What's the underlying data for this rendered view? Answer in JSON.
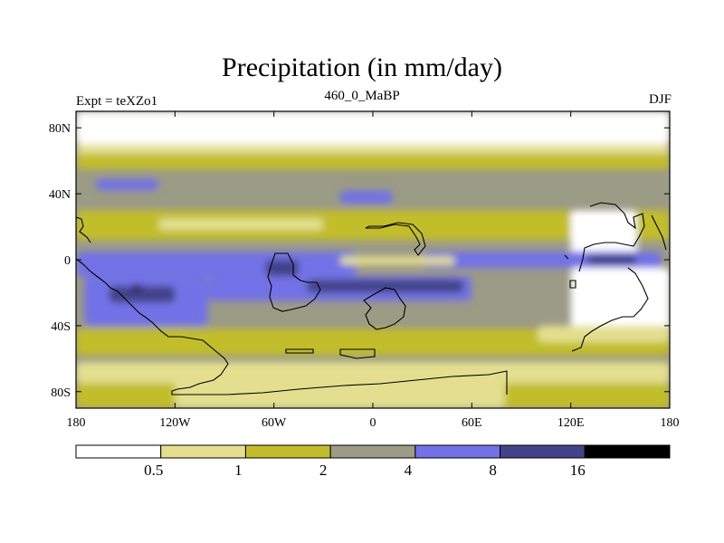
{
  "chart_data": {
    "type": "heatmap",
    "title": "Precipitation (in mm/day)",
    "subtitle_left": "Expt = teXZo1",
    "subtitle_center": "460_0_MaBP",
    "subtitle_right": "DJF",
    "x_range": [
      -180,
      180
    ],
    "y_range": [
      -90,
      90
    ],
    "x_ticks": [
      {
        "value": -180,
        "label": "180"
      },
      {
        "value": -120,
        "label": "120W"
      },
      {
        "value": -60,
        "label": "60W"
      },
      {
        "value": 0,
        "label": "0"
      },
      {
        "value": 60,
        "label": "60E"
      },
      {
        "value": 120,
        "label": "120E"
      },
      {
        "value": 180,
        "label": "180"
      }
    ],
    "y_ticks": [
      {
        "value": 80,
        "label": "80N"
      },
      {
        "value": 40,
        "label": "40N"
      },
      {
        "value": 0,
        "label": "0"
      },
      {
        "value": -40,
        "label": "40S"
      },
      {
        "value": -80,
        "label": "80S"
      }
    ],
    "color_levels": [
      0.5,
      1,
      2,
      4,
      8,
      16
    ],
    "level_labels": [
      "0.5",
      "1",
      "2",
      "4",
      "8",
      "16"
    ],
    "colors": [
      "#ffffff",
      "#e3df8f",
      "#c2bd2a",
      "#9c9b86",
      "#7272e6",
      "#434389",
      "#000000"
    ],
    "background_level": 3,
    "regions": [
      {
        "name": "polar-north",
        "lon": [
          -180,
          180
        ],
        "lat": [
          70,
          90
        ],
        "level": 0
      },
      {
        "name": "north-high-lat-light",
        "lon": [
          -180,
          180
        ],
        "lat": [
          64,
          70
        ],
        "level": 1
      },
      {
        "name": "north-mid-yellow",
        "lon": [
          -180,
          180
        ],
        "lat": [
          55,
          64
        ],
        "level": 2
      },
      {
        "name": "north-pacific-wet",
        "lon": [
          -168,
          -130
        ],
        "lat": [
          42,
          49
        ],
        "level": 4
      },
      {
        "name": "north-midlat-wet",
        "lon": [
          -20,
          12
        ],
        "lat": [
          34,
          42
        ],
        "level": 4
      },
      {
        "name": "tropics-north-yellow",
        "lon": [
          -180,
          180
        ],
        "lat": [
          12,
          30
        ],
        "level": 2
      },
      {
        "name": "subtropic-north-light",
        "lon": [
          -130,
          -30
        ],
        "lat": [
          18,
          25
        ],
        "level": 1
      },
      {
        "name": "asia-dry",
        "lon": [
          120,
          160
        ],
        "lat": [
          2,
          30
        ],
        "level": 0
      },
      {
        "name": "equator-wet",
        "lon": [
          -180,
          -10
        ],
        "lat": [
          -10,
          5
        ],
        "level": 4
      },
      {
        "name": "equator-wet-east",
        "lon": [
          30,
          175
        ],
        "lat": [
          -5,
          5
        ],
        "level": 4
      },
      {
        "name": "atlantic-equator-dry",
        "lon": [
          -20,
          50
        ],
        "lat": [
          -3,
          2
        ],
        "level": 1
      },
      {
        "name": "south-pacific-wet",
        "lon": [
          -175,
          -100
        ],
        "lat": [
          -40,
          -10
        ],
        "level": 4
      },
      {
        "name": "south-pacific-core",
        "lon": [
          -160,
          -120
        ],
        "lat": [
          -26,
          -16
        ],
        "level": 5
      },
      {
        "name": "south-pacific-max",
        "lon": [
          -146,
          -140
        ],
        "lat": [
          -19,
          -15
        ],
        "level": 6
      },
      {
        "name": "south-atlantic-wet",
        "lon": [
          -100,
          60
        ],
        "lat": [
          -25,
          -10
        ],
        "level": 4
      },
      {
        "name": "south-central-core",
        "lon": [
          -40,
          55
        ],
        "lat": [
          -20,
          -12
        ],
        "level": 5
      },
      {
        "name": "equator-core-west",
        "lon": [
          -65,
          -45
        ],
        "lat": [
          -10,
          0
        ],
        "level": 5
      },
      {
        "name": "equator-core-east",
        "lon": [
          130,
          160
        ],
        "lat": [
          -3,
          3
        ],
        "level": 5
      },
      {
        "name": "south-mid-yellow",
        "lon": [
          -180,
          180
        ],
        "lat": [
          -58,
          -42
        ],
        "level": 2
      },
      {
        "name": "south-east-dry",
        "lon": [
          120,
          180
        ],
        "lat": [
          -45,
          -5
        ],
        "level": 0
      },
      {
        "name": "south-east-light",
        "lon": [
          100,
          180
        ],
        "lat": [
          -50,
          -40
        ],
        "level": 1
      },
      {
        "name": "south-high-light",
        "lon": [
          -180,
          180
        ],
        "lat": [
          -75,
          -62
        ],
        "level": 1
      },
      {
        "name": "south-high-yellow",
        "lon": [
          -180,
          180
        ],
        "lat": [
          -90,
          -75
        ],
        "level": 2
      },
      {
        "name": "antarctic-light",
        "lon": [
          -120,
          80
        ],
        "lat": [
          -90,
          -68
        ],
        "level": 1
      }
    ]
  }
}
